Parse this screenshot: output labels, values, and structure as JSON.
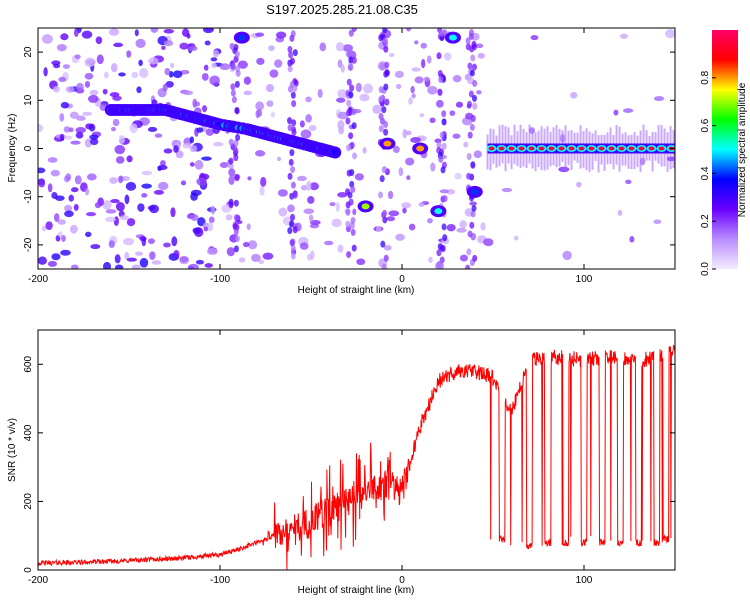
{
  "title": "S197.2025.285.21.08.C35",
  "chart_data": [
    {
      "type": "heatmap",
      "title": "S197.2025.285.21.08.C35",
      "xlabel": "Height of straight line (km)",
      "ylabel": "Frequency (Hz)",
      "xlim": [
        -200,
        150
      ],
      "ylim": [
        -25,
        25
      ],
      "xticks": [
        -200,
        -100,
        0,
        100
      ],
      "yticks": [
        -20,
        -10,
        0,
        10,
        20
      ],
      "colorbar": {
        "label": "Normalized spectral amplitude",
        "range": [
          0,
          1
        ],
        "ticks": [
          "0.0",
          "0.2",
          "0.4",
          "0.6",
          "0.8"
        ],
        "colors": [
          "#f4ecff",
          "#b98cff",
          "#6a00ff",
          "#0000ff",
          "#00ffff",
          "#00ff00",
          "#ffff00",
          "#ff0000",
          "#ff0066"
        ]
      },
      "features": [
        {
          "name": "drifting-line",
          "x": [
            -160,
            -150,
            -140,
            -130,
            -120,
            -110,
            -100,
            -85,
            -75,
            -65,
            -55,
            -45,
            -35
          ],
          "freq": [
            8,
            8,
            8,
            8,
            7,
            6,
            5,
            4,
            3,
            2,
            1,
            0,
            -1
          ],
          "amplitude": 0.4
        },
        {
          "name": "steady-line-0Hz",
          "x_range": [
            47,
            150
          ],
          "freq": 0,
          "amplitude": 0.95
        },
        {
          "name": "blob-a",
          "x": -20,
          "freq": -12,
          "amplitude": 0.7
        },
        {
          "name": "blob-b",
          "x": -8,
          "freq": 1,
          "amplitude": 0.8
        },
        {
          "name": "blob-c",
          "x": 10,
          "freq": 0,
          "amplitude": 0.8
        },
        {
          "name": "blob-d",
          "x": 20,
          "freq": -13,
          "amplitude": 0.5
        },
        {
          "name": "blob-e",
          "x": 40,
          "freq": -9,
          "amplitude": 0.4
        },
        {
          "name": "blob-f",
          "x": 28,
          "freq": 23,
          "amplitude": 0.5
        },
        {
          "name": "blob-g",
          "x": -88,
          "freq": 23,
          "amplitude": 0.4
        }
      ]
    },
    {
      "type": "line",
      "xlabel": "Height of straight line (km)",
      "ylabel": "SNR (10 * v/v)",
      "xlim": [
        -200,
        150
      ],
      "ylim": [
        0,
        700
      ],
      "xticks": [
        -200,
        -100,
        0,
        100
      ],
      "yticks": [
        0,
        200,
        400,
        600
      ],
      "color": "#ff0000",
      "series": [
        {
          "name": "SNR",
          "x": [
            -200,
            -180,
            -160,
            -140,
            -120,
            -100,
            -90,
            -80,
            -70,
            -60,
            -50,
            -40,
            -30,
            -20,
            -10,
            0,
            10,
            20,
            30,
            40,
            50,
            60,
            70,
            80,
            90,
            100,
            110,
            120,
            130,
            140,
            150
          ],
          "values": [
            20,
            22,
            25,
            30,
            35,
            45,
            60,
            80,
            100,
            120,
            140,
            170,
            200,
            230,
            250,
            230,
            420,
            550,
            580,
            580,
            560,
            460,
            610,
            620,
            620,
            610,
            620,
            620,
            610,
            620,
            640
          ],
          "baseline_dips": [
            [
              55,
              80
            ],
            [
              70,
              60
            ],
            [
              80,
              70
            ],
            [
              90,
              70
            ],
            [
              100,
              70
            ],
            [
              110,
              70
            ],
            [
              120,
              70
            ],
            [
              130,
              70
            ],
            [
              140,
              70
            ],
            [
              145,
              80
            ]
          ]
        }
      ]
    }
  ]
}
